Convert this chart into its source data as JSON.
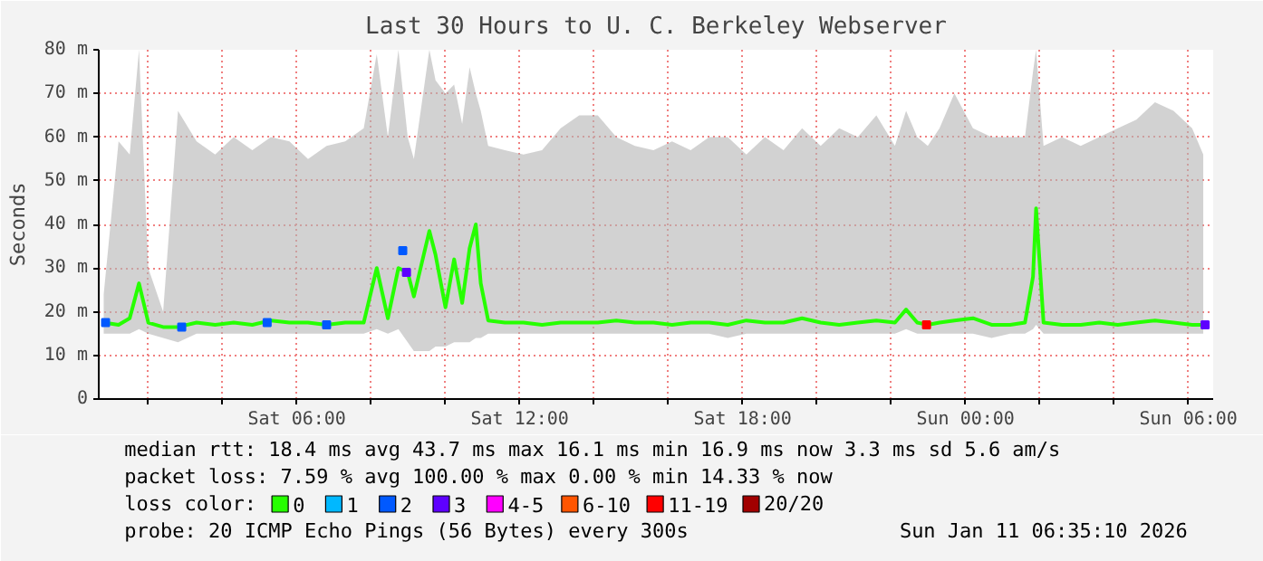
{
  "chart_data": {
    "type": "line",
    "title": "Last 30 Hours to U. C. Berkeley Webserver",
    "ylabel": "Seconds",
    "legend_title": "loss color:",
    "legend": "bottom",
    "grid": true,
    "xlim": [
      "2026-01-10T00:40",
      "2026-01-11T06:40"
    ],
    "xticks": [
      {
        "value": "2026-01-10T02:00",
        "label": null
      },
      {
        "value": "2026-01-10T04:00",
        "label": null
      },
      {
        "value": "2026-01-10T06:00",
        "label": "Sat 06:00"
      },
      {
        "value": "2026-01-10T08:00",
        "label": null
      },
      {
        "value": "2026-01-10T10:00",
        "label": null
      },
      {
        "value": "2026-01-10T12:00",
        "label": "Sat 12:00"
      },
      {
        "value": "2026-01-10T14:00",
        "label": null
      },
      {
        "value": "2026-01-10T16:00",
        "label": null
      },
      {
        "value": "2026-01-10T18:00",
        "label": "Sat 18:00"
      },
      {
        "value": "2026-01-10T20:00",
        "label": null
      },
      {
        "value": "2026-01-10T22:00",
        "label": null
      },
      {
        "value": "2026-01-11T00:00",
        "label": "Sun 00:00"
      },
      {
        "value": "2026-01-11T02:00",
        "label": null
      },
      {
        "value": "2026-01-11T04:00",
        "label": null
      },
      {
        "value": "2026-01-11T06:00",
        "label": "Sun 06:00"
      }
    ],
    "ylim": [
      0,
      80
    ],
    "yticks": [
      0,
      {
        "value": 10,
        "label": "10 m"
      },
      {
        "value": 20,
        "label": "20 m"
      },
      {
        "value": 30,
        "label": "30 m"
      },
      {
        "value": 40,
        "label": "40 m"
      },
      {
        "value": 50,
        "label": "50 m"
      },
      {
        "value": 60,
        "label": "60 m"
      },
      {
        "value": 70,
        "label": "70 m"
      },
      {
        "value": 80,
        "label": "80 m"
      }
    ],
    "x": [
      "2026-01-10T00:48",
      "2026-01-10T01:12",
      "2026-01-10T01:30",
      "2026-01-10T01:45",
      "2026-01-10T02:00",
      "2026-01-10T02:24",
      "2026-01-10T02:48",
      "2026-01-10T03:18",
      "2026-01-10T03:48",
      "2026-01-10T04:18",
      "2026-01-10T04:48",
      "2026-01-10T05:18",
      "2026-01-10T05:48",
      "2026-01-10T06:18",
      "2026-01-10T06:48",
      "2026-01-10T07:18",
      "2026-01-10T07:48",
      "2026-01-10T08:09",
      "2026-01-10T08:27",
      "2026-01-10T08:44",
      "2026-01-10T08:59",
      "2026-01-10T09:09",
      "2026-01-10T09:34",
      "2026-01-10T09:44",
      "2026-01-10T10:00",
      "2026-01-10T10:14",
      "2026-01-10T10:27",
      "2026-01-10T10:39",
      "2026-01-10T10:49",
      "2026-01-10T10:57",
      "2026-01-10T11:09",
      "2026-01-10T11:36",
      "2026-01-10T12:06",
      "2026-01-10T12:36",
      "2026-01-10T13:06",
      "2026-01-10T13:36",
      "2026-01-10T14:06",
      "2026-01-10T14:36",
      "2026-01-10T15:06",
      "2026-01-10T15:36",
      "2026-01-10T16:06",
      "2026-01-10T16:36",
      "2026-01-10T17:06",
      "2026-01-10T17:36",
      "2026-01-10T18:06",
      "2026-01-10T18:36",
      "2026-01-10T19:06",
      "2026-01-10T19:36",
      "2026-01-10T20:06",
      "2026-01-10T20:36",
      "2026-01-10T21:06",
      "2026-01-10T21:36",
      "2026-01-10T22:06",
      "2026-01-10T22:24",
      "2026-01-10T22:42",
      "2026-01-10T22:59",
      "2026-01-10T23:18",
      "2026-01-10T23:42",
      "2026-01-11T00:12",
      "2026-01-11T00:42",
      "2026-01-11T01:12",
      "2026-01-11T01:36",
      "2026-01-11T01:49",
      "2026-01-11T01:54",
      "2026-01-11T02:06",
      "2026-01-11T02:36",
      "2026-01-11T03:06",
      "2026-01-11T03:36",
      "2026-01-11T04:06",
      "2026-01-11T04:36",
      "2026-01-11T05:06",
      "2026-01-11T05:36",
      "2026-01-11T06:06",
      "2026-01-11T06:24"
    ],
    "series": [
      {
        "name": "0",
        "color": "#26ff00",
        "values": [
          17.5,
          17,
          18.5,
          26.5,
          17.5,
          16.5,
          16.5,
          17.5,
          17,
          17.5,
          17,
          18,
          17.5,
          17.5,
          17,
          17.5,
          17.5,
          30,
          18.5,
          30,
          29,
          23.5,
          38.5,
          33,
          21,
          32,
          22,
          34.5,
          40,
          26.5,
          18,
          17.5,
          17.5,
          17,
          17.5,
          17.5,
          17.5,
          18,
          17.5,
          17.5,
          17,
          17.5,
          17.5,
          17,
          18,
          17.5,
          17.5,
          18.5,
          17.5,
          17,
          17.5,
          18,
          17.5,
          20.5,
          17.5,
          17,
          17.5,
          18,
          18.5,
          17,
          17,
          17.5,
          28,
          43.7,
          17.5,
          17,
          17,
          17.5,
          17,
          17.5,
          18,
          17.5,
          17,
          17
        ],
        "lower": [
          15,
          15,
          15,
          16,
          15,
          14,
          13,
          15,
          15,
          15,
          15,
          15,
          15,
          15,
          15,
          15,
          15,
          16,
          15,
          16,
          13,
          11,
          11,
          12,
          12,
          13,
          13,
          13,
          14,
          14,
          15,
          15,
          15,
          15,
          15,
          15,
          15,
          15,
          15,
          15,
          15,
          15,
          15,
          14,
          15,
          15,
          15,
          15,
          15,
          15,
          15,
          15,
          15,
          16,
          15,
          15,
          15,
          15,
          15,
          14,
          15,
          15,
          16,
          17,
          15,
          15,
          15,
          15,
          15,
          15,
          15,
          15,
          15,
          15
        ],
        "upper": [
          24,
          59,
          56,
          80,
          30,
          20,
          66,
          59,
          56,
          60,
          57,
          60,
          59,
          55,
          58,
          59,
          62,
          79,
          60,
          80,
          60,
          55,
          80,
          73,
          70,
          72,
          63,
          76,
          70,
          66,
          58,
          57,
          56,
          57,
          62,
          65,
          65,
          60,
          58,
          57,
          59,
          57,
          60,
          60,
          56,
          60,
          57,
          62,
          58,
          62,
          60,
          65,
          58,
          66,
          60,
          58,
          62,
          70,
          62,
          60,
          60,
          60,
          75,
          80,
          58,
          60,
          58,
          60,
          62,
          64,
          68,
          66,
          62,
          56
        ]
      },
      {
        "name": "1",
        "color": "#00b8ff",
        "type": "scatter",
        "marker": "square",
        "values": [
          null,
          null,
          null,
          null,
          null,
          null,
          null,
          null,
          null,
          null,
          null,
          null,
          null,
          null,
          null,
          null,
          null,
          null,
          null,
          null,
          null,
          null,
          null,
          null,
          null,
          null,
          null,
          null,
          null,
          null,
          null,
          null,
          null,
          null,
          null,
          null,
          null,
          null,
          null,
          null,
          null,
          null,
          null,
          null,
          null,
          null,
          null,
          null,
          null,
          null,
          null,
          null,
          null,
          null,
          null,
          null,
          null,
          null,
          null,
          null,
          null,
          null,
          null,
          null,
          null,
          null,
          null,
          null,
          null,
          null,
          null,
          null,
          null,
          null
        ]
      },
      {
        "name": "2",
        "color": "#0059ff",
        "type": "scatter",
        "marker": "square",
        "x": [
          "2026-01-10T00:51",
          "2026-01-10T02:54",
          "2026-01-10T05:12",
          "2026-01-10T06:48",
          "2026-01-10T08:51"
        ],
        "values": [
          17.5,
          16.5,
          17.5,
          17,
          34
        ]
      },
      {
        "name": "3",
        "color": "#5e00ff",
        "type": "scatter",
        "marker": "square",
        "x": [
          "2026-01-10T08:57",
          "2026-01-11T06:27"
        ],
        "values": [
          29,
          17
        ]
      },
      {
        "name": "4-5",
        "color": "#ff00ff",
        "type": "scatter",
        "marker": "square",
        "values": [
          null,
          null,
          null,
          null,
          null,
          null,
          null,
          null,
          null,
          null,
          null,
          null,
          null,
          null,
          null,
          null,
          null,
          null,
          null,
          null,
          null,
          null,
          null,
          null,
          null,
          null,
          null,
          null,
          null,
          null,
          null,
          null,
          null,
          null,
          null,
          null,
          null,
          null,
          null,
          null,
          null,
          null,
          null,
          null,
          null,
          null,
          null,
          null,
          null,
          null,
          null,
          null,
          null,
          null,
          null,
          null,
          null,
          null,
          null,
          null,
          null,
          null,
          null,
          null,
          null,
          null,
          null,
          null,
          null,
          null,
          null,
          null,
          null,
          null
        ]
      },
      {
        "name": "6-10",
        "color": "#ff5500",
        "type": "scatter",
        "marker": "square",
        "values": [
          null,
          null,
          null,
          null,
          null,
          null,
          null,
          null,
          null,
          null,
          null,
          null,
          null,
          null,
          null,
          null,
          null,
          null,
          null,
          null,
          null,
          null,
          null,
          null,
          null,
          null,
          null,
          null,
          null,
          null,
          null,
          null,
          null,
          null,
          null,
          null,
          null,
          null,
          null,
          null,
          null,
          null,
          null,
          null,
          null,
          null,
          null,
          null,
          null,
          null,
          null,
          null,
          null,
          null,
          null,
          null,
          null,
          null,
          null,
          null,
          null,
          null,
          null,
          null,
          null,
          null,
          null,
          null,
          null,
          null,
          null,
          null,
          null,
          null
        ]
      },
      {
        "name": "11-19",
        "color": "#ff0000",
        "type": "scatter",
        "marker": "square",
        "x": [
          "2026-01-10T22:57"
        ],
        "values": [
          17
        ]
      },
      {
        "name": "20/20",
        "color": "#a10000",
        "type": "scatter",
        "marker": "square",
        "values": [
          null,
          null,
          null,
          null,
          null,
          null,
          null,
          null,
          null,
          null,
          null,
          null,
          null,
          null,
          null,
          null,
          null,
          null,
          null,
          null,
          null,
          null,
          null,
          null,
          null,
          null,
          null,
          null,
          null,
          null,
          null,
          null,
          null,
          null,
          null,
          null,
          null,
          null,
          null,
          null,
          null,
          null,
          null,
          null,
          null,
          null,
          null,
          null,
          null,
          null,
          null,
          null,
          null,
          null,
          null,
          null,
          null,
          null,
          null,
          null,
          null,
          null,
          null,
          null,
          null,
          null,
          null,
          null,
          null,
          null,
          null,
          null,
          null,
          null
        ]
      }
    ],
    "annotations": [
      "median rtt:  18.4 ms avg  43.7 ms max  16.1 ms min  16.9 ms now  3.3 ms sd  5.6   am/s",
      "packet loss: 7.59 % avg  100.00 % max  0.00 % min  14.33 % now",
      "probe:        20 ICMP Echo Pings (56 Bytes) every 300s",
      "Sun Jan 11 06:35:10 2026"
    ]
  }
}
